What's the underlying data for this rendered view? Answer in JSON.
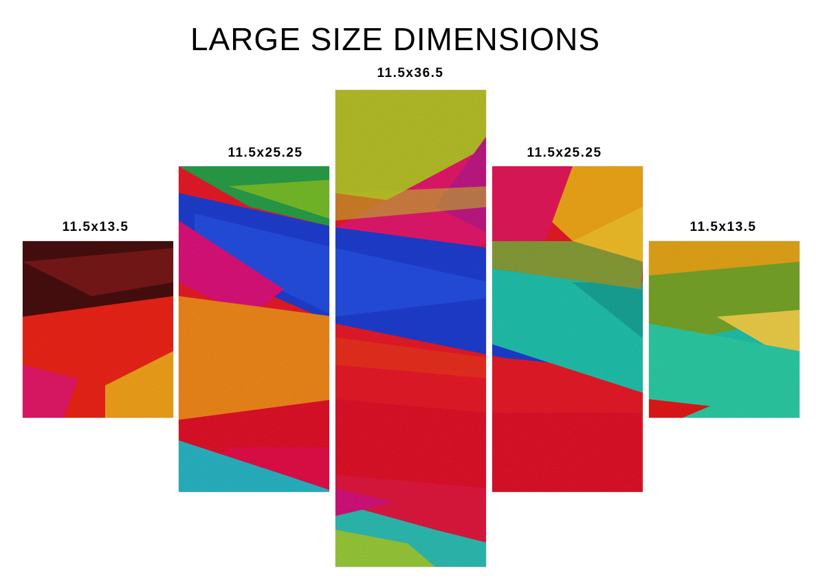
{
  "title": "LARGE SIZE DIMENSIONS",
  "panels": [
    {
      "label": "11.5x13.5"
    },
    {
      "label": "11.5x25.25"
    },
    {
      "label": "11.5x36.5"
    },
    {
      "label": "11.5x25.25"
    },
    {
      "label": "11.5x13.5"
    }
  ],
  "colors": {
    "red": "#f01a1a",
    "magenta": "#e8196e",
    "blue": "#1f3fd6",
    "green": "#6fbf2a",
    "yellow": "#f2c81e",
    "orange": "#f7861b",
    "teal": "#21c7b1",
    "dark": "#3a0e0e"
  }
}
